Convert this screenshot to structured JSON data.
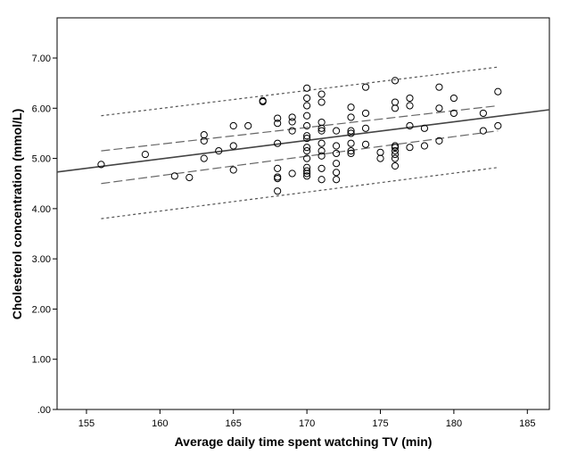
{
  "chart_data": {
    "type": "scatter",
    "title": "",
    "xlabel": "Average daily time spent watching TV (min)",
    "ylabel": "Cholesterol concentration (mmol/L)",
    "xlim": [
      153,
      186.5
    ],
    "ylim": [
      0,
      7.8
    ],
    "x_ticks": [
      155,
      160,
      165,
      170,
      175,
      180,
      185
    ],
    "y_ticks": [
      0,
      1,
      2,
      3,
      4,
      5,
      6,
      7
    ],
    "y_tick_labels": [
      ".00",
      "1.00",
      "2.00",
      "3.00",
      "4.00",
      "5.00",
      "6.00",
      "7.00"
    ],
    "grid": false,
    "legend": "none",
    "points": [
      [
        156,
        4.88
      ],
      [
        159,
        5.08
      ],
      [
        161,
        4.65
      ],
      [
        162,
        4.62
      ],
      [
        163,
        5.47
      ],
      [
        163,
        5.35
      ],
      [
        163,
        5.0
      ],
      [
        164,
        5.15
      ],
      [
        165,
        5.65
      ],
      [
        165,
        5.25
      ],
      [
        165,
        4.77
      ],
      [
        166,
        5.65
      ],
      [
        167,
        6.15
      ],
      [
        167,
        6.13
      ],
      [
        168,
        5.8
      ],
      [
        168,
        5.7
      ],
      [
        168,
        5.3
      ],
      [
        168,
        4.8
      ],
      [
        168,
        4.63
      ],
      [
        168,
        4.6
      ],
      [
        168,
        4.35
      ],
      [
        169,
        5.82
      ],
      [
        169,
        5.73
      ],
      [
        169,
        5.55
      ],
      [
        169,
        4.7
      ],
      [
        170,
        6.4
      ],
      [
        170,
        6.2
      ],
      [
        170,
        6.05
      ],
      [
        170,
        5.85
      ],
      [
        170,
        5.65
      ],
      [
        170,
        5.45
      ],
      [
        170,
        5.4
      ],
      [
        170,
        5.22
      ],
      [
        170,
        5.15
      ],
      [
        170,
        5.0
      ],
      [
        170,
        4.82
      ],
      [
        170,
        4.75
      ],
      [
        170,
        4.7
      ],
      [
        170,
        4.65
      ],
      [
        171,
        6.28
      ],
      [
        171,
        6.12
      ],
      [
        171,
        5.72
      ],
      [
        171,
        5.6
      ],
      [
        171,
        5.55
      ],
      [
        171,
        5.3
      ],
      [
        171,
        5.15
      ],
      [
        171,
        5.05
      ],
      [
        171,
        4.8
      ],
      [
        171,
        4.58
      ],
      [
        172,
        5.55
      ],
      [
        172,
        5.25
      ],
      [
        172,
        5.1
      ],
      [
        172,
        4.9
      ],
      [
        172,
        4.72
      ],
      [
        172,
        4.58
      ],
      [
        173,
        6.02
      ],
      [
        173,
        5.82
      ],
      [
        173,
        5.55
      ],
      [
        173,
        5.5
      ],
      [
        173,
        5.3
      ],
      [
        173,
        5.15
      ],
      [
        173,
        5.1
      ],
      [
        174,
        6.42
      ],
      [
        174,
        5.9
      ],
      [
        174,
        5.6
      ],
      [
        174,
        5.28
      ],
      [
        175,
        5.12
      ],
      [
        175,
        5.0
      ],
      [
        176,
        6.55
      ],
      [
        176,
        6.12
      ],
      [
        176,
        6.0
      ],
      [
        176,
        5.25
      ],
      [
        176,
        5.22
      ],
      [
        176,
        5.15
      ],
      [
        176,
        5.08
      ],
      [
        176,
        5.0
      ],
      [
        176,
        4.85
      ],
      [
        177,
        6.2
      ],
      [
        177,
        6.05
      ],
      [
        177,
        5.65
      ],
      [
        177,
        5.22
      ],
      [
        178,
        5.6
      ],
      [
        178,
        5.25
      ],
      [
        179,
        6.42
      ],
      [
        179,
        6.0
      ],
      [
        179,
        5.35
      ],
      [
        180,
        6.2
      ],
      [
        180,
        5.9
      ],
      [
        182,
        5.9
      ],
      [
        182,
        5.55
      ],
      [
        183,
        6.33
      ],
      [
        183,
        5.65
      ]
    ],
    "fit_line": {
      "x": [
        153,
        186.5
      ],
      "y": [
        4.73,
        5.97
      ]
    },
    "ci_mean_upper": {
      "x": [
        156,
        183
      ],
      "y": [
        5.15,
        6.05
      ]
    },
    "ci_mean_lower": {
      "x": [
        156,
        183
      ],
      "y": [
        4.5,
        5.55
      ]
    },
    "ci_individual_upper": {
      "x": [
        156,
        183
      ],
      "y": [
        5.85,
        6.82
      ]
    },
    "ci_individual_lower": {
      "x": [
        156,
        183
      ],
      "y": [
        3.8,
        4.82
      ]
    }
  }
}
